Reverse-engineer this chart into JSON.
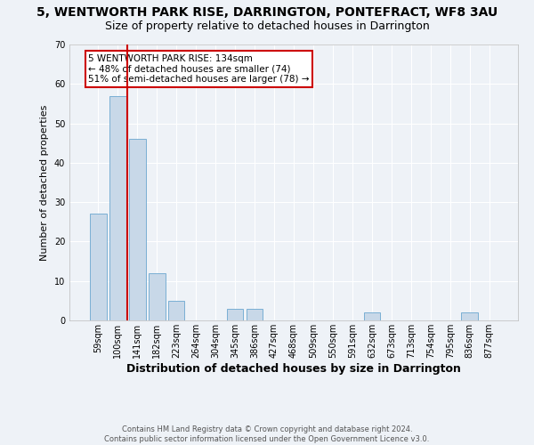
{
  "title": "5, WENTWORTH PARK RISE, DARRINGTON, PONTEFRACT, WF8 3AU",
  "subtitle": "Size of property relative to detached houses in Darrington",
  "xlabel": "Distribution of detached houses by size in Darrington",
  "ylabel": "Number of detached properties",
  "categories": [
    "59sqm",
    "100sqm",
    "141sqm",
    "182sqm",
    "223sqm",
    "264sqm",
    "304sqm",
    "345sqm",
    "386sqm",
    "427sqm",
    "468sqm",
    "509sqm",
    "550sqm",
    "591sqm",
    "632sqm",
    "673sqm",
    "713sqm",
    "754sqm",
    "795sqm",
    "836sqm",
    "877sqm"
  ],
  "values": [
    27,
    57,
    46,
    12,
    5,
    0,
    0,
    3,
    3,
    0,
    0,
    0,
    0,
    0,
    2,
    0,
    0,
    0,
    0,
    2,
    0
  ],
  "bar_color": "#c8d8e8",
  "bar_edge_color": "#7aafd4",
  "vline_pos": 1.5,
  "vline_color": "#cc0000",
  "annotation_text": "5 WENTWORTH PARK RISE: 134sqm\n← 48% of detached houses are smaller (74)\n51% of semi-detached houses are larger (78) →",
  "annotation_box_color": "#ffffff",
  "annotation_box_edge": "#cc0000",
  "ylim": [
    0,
    70
  ],
  "yticks": [
    0,
    10,
    20,
    30,
    40,
    50,
    60,
    70
  ],
  "footer": "Contains HM Land Registry data © Crown copyright and database right 2024.\nContains public sector information licensed under the Open Government Licence v3.0.",
  "bg_color": "#eef2f7",
  "plot_bg_color": "#eef2f7",
  "grid_color": "#ffffff",
  "title_fontsize": 10,
  "subtitle_fontsize": 9,
  "tick_fontsize": 7,
  "ylabel_fontsize": 8,
  "xlabel_fontsize": 9,
  "annotation_fontsize": 7.5,
  "footer_fontsize": 6
}
